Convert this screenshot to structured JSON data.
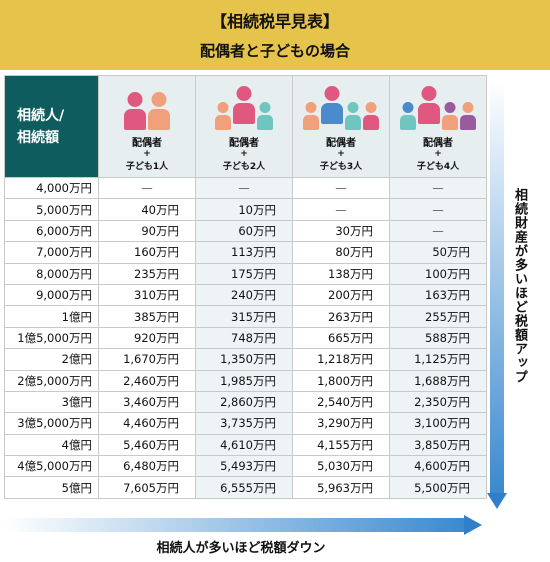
{
  "header": {
    "title": "【相続税早見表】",
    "subtitle": "配偶者と子どもの場合"
  },
  "table": {
    "corner_label_line1": "相続人/",
    "corner_label_line2": "相続額",
    "columns": [
      {
        "label": "配偶者",
        "plus": "+",
        "children": "子ども1人"
      },
      {
        "label": "配偶者",
        "plus": "+",
        "children": "子ども2人"
      },
      {
        "label": "配偶者",
        "plus": "+",
        "children": "子ども3人"
      },
      {
        "label": "配偶者",
        "plus": "+",
        "children": "子ども4人"
      }
    ],
    "rows": [
      {
        "amount": "4,000万円",
        "values": [
          "—",
          "—",
          "—",
          "—"
        ]
      },
      {
        "amount": "5,000万円",
        "values": [
          "40万円",
          "10万円",
          "—",
          "—"
        ]
      },
      {
        "amount": "6,000万円",
        "values": [
          "90万円",
          "60万円",
          "30万円",
          "—"
        ]
      },
      {
        "amount": "7,000万円",
        "values": [
          "160万円",
          "113万円",
          "80万円",
          "50万円"
        ]
      },
      {
        "amount": "8,000万円",
        "values": [
          "235万円",
          "175万円",
          "138万円",
          "100万円"
        ]
      },
      {
        "amount": "9,000万円",
        "values": [
          "310万円",
          "240万円",
          "200万円",
          "163万円"
        ]
      },
      {
        "amount": "1億円",
        "values": [
          "385万円",
          "315万円",
          "263万円",
          "255万円"
        ]
      },
      {
        "amount": "1億5,000万円",
        "values": [
          "920万円",
          "748万円",
          "665万円",
          "588万円"
        ]
      },
      {
        "amount": "2億円",
        "values": [
          "1,670万円",
          "1,350万円",
          "1,218万円",
          "1,125万円"
        ]
      },
      {
        "amount": "2億5,000万円",
        "values": [
          "2,460万円",
          "1,985万円",
          "1,800万円",
          "1,688万円"
        ]
      },
      {
        "amount": "3億円",
        "values": [
          "3,460万円",
          "2,860万円",
          "2,540万円",
          "2,350万円"
        ]
      },
      {
        "amount": "3億5,000万円",
        "values": [
          "4,460万円",
          "3,735万円",
          "3,290万円",
          "3,100万円"
        ]
      },
      {
        "amount": "4億円",
        "values": [
          "5,460万円",
          "4,610万円",
          "4,155万円",
          "3,850万円"
        ]
      },
      {
        "amount": "4億5,000万円",
        "values": [
          "6,480万円",
          "5,493万円",
          "5,030万円",
          "4,600万円"
        ]
      },
      {
        "amount": "5億円",
        "values": [
          "7,605万円",
          "6,555万円",
          "5,963万円",
          "5,500万円"
        ]
      }
    ]
  },
  "arrows": {
    "vertical_label": "相続財産が多いほど税額アップ",
    "horizontal_label": "相続人が多いほど税額ダウン"
  },
  "colors": {
    "banner": "#e6c34a",
    "corner_header": "#0e5c5e",
    "column_header_bg": "#e7eef0",
    "arrow": "#2f80c8",
    "spouse_pink": "#e0587f",
    "spouse_orange": "#f0a07a",
    "child_teal": "#6fc6c0",
    "child_purple": "#9a5a9e",
    "child_blue": "#4a8ccb"
  },
  "icons": {
    "family_icons": [
      "family-1-child-icon",
      "family-2-children-icon",
      "family-3-children-icon",
      "family-4-children-icon"
    ]
  }
}
